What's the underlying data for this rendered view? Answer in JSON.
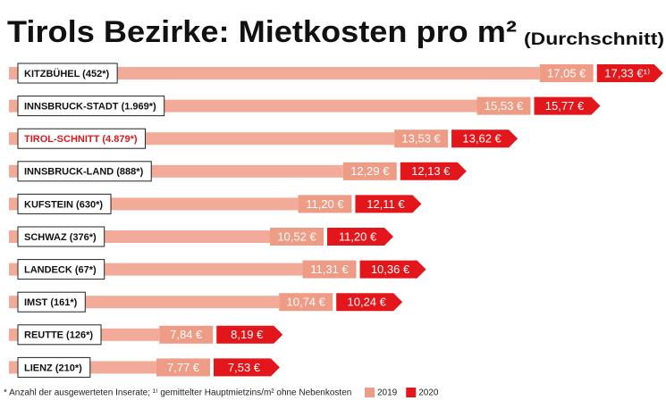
{
  "chart_data": {
    "type": "bar",
    "title": "Tirols Bezirke: Mietkosten pro m²",
    "subtitle": "(Durchschnitt)",
    "footnote": "* Anzahl der ausgewerteten Inserate; ¹⁾ gemittelter Hauptmietzins/m² ohne Nebenkosten",
    "categories": [
      "KITZBÜHEL (452*)",
      "INNSBRUCK-STADT (1.969*)",
      "TIROL-SCHNITT (4.879*)",
      "INNSBRUCK-LAND (888*)",
      "KUFSTEIN (630*)",
      "SCHWAZ (376*)",
      "LANDECK (67*)",
      "IMST (161*)",
      "REUTTE (126*)",
      "LIENZ (210*)"
    ],
    "category_label_colors": [
      "#111111",
      "#111111",
      "#e3161b",
      "#111111",
      "#111111",
      "#111111",
      "#111111",
      "#111111",
      "#111111",
      "#111111"
    ],
    "series": [
      {
        "name": "2019",
        "color": "#ef9c86",
        "values": [
          17.05,
          15.53,
          13.53,
          12.29,
          11.2,
          10.52,
          11.31,
          10.74,
          7.84,
          7.77
        ],
        "value_labels": [
          "17,05 €",
          "15,53 €",
          "13,53 €",
          "12,29 €",
          "11,20 €",
          "10,52 €",
          "11,31 €",
          "10,74 €",
          "7,84 €",
          "7,77 €"
        ]
      },
      {
        "name": "2020",
        "color": "#e3161b",
        "values": [
          17.33,
          15.77,
          13.62,
          12.13,
          12.11,
          11.2,
          10.36,
          10.24,
          8.19,
          7.53
        ],
        "value_labels": [
          "17,33 €¹⁾",
          "15,77 €",
          "13,62 €",
          "12,13 €",
          "12,11 €",
          "11,20 €",
          "10,36 €",
          "10,24 €",
          "8,19 €",
          "7,53 €"
        ]
      }
    ]
  }
}
